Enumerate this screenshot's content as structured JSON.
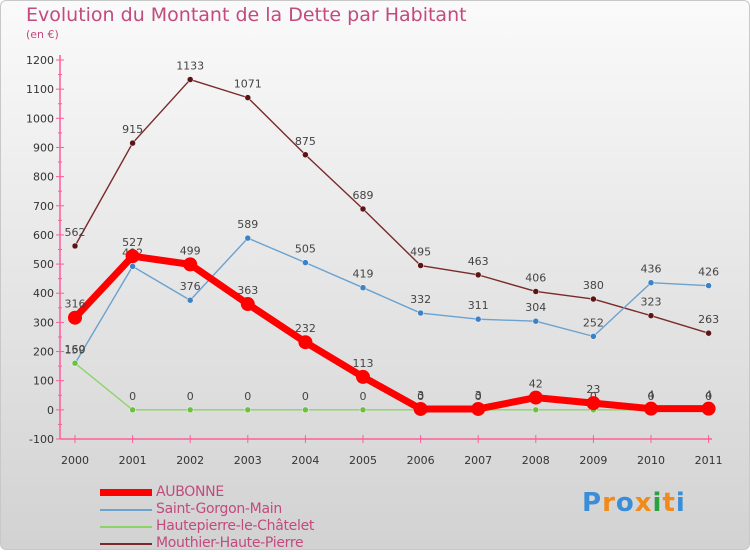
{
  "chart_data": {
    "type": "line",
    "title": "Evolution du Montant de la Dette par Habitant",
    "subtitle": "(en €)",
    "xlabel": "",
    "ylabel": "",
    "ylim": [
      -100,
      1200
    ],
    "yticks": [
      -100,
      0,
      100,
      200,
      300,
      400,
      500,
      600,
      700,
      800,
      900,
      1000,
      1100,
      1200
    ],
    "categories": [
      "2000",
      "2001",
      "2002",
      "2003",
      "2004",
      "2005",
      "2006",
      "2007",
      "2008",
      "2009",
      "2010",
      "2011"
    ],
    "grid": false,
    "legend_position": "bottom-left",
    "series": [
      {
        "name": "Mouthier-Haute-Pierre",
        "color": "#7a2a2a",
        "dot": "#5a1616",
        "thick": false,
        "values": [
          562,
          915,
          1133,
          1071,
          875,
          689,
          495,
          463,
          406,
          380,
          323,
          263
        ]
      },
      {
        "name": "Saint-Gorgon-Main",
        "color": "#6aa2d0",
        "dot": "#3d82c4",
        "thick": false,
        "values": [
          159,
          492,
          376,
          589,
          505,
          419,
          332,
          311,
          304,
          252,
          436,
          426
        ]
      },
      {
        "name": "Hautepierre-le-Châtelet",
        "color": "#8cd468",
        "dot": "#6cc040",
        "thick": false,
        "values": [
          160,
          0,
          0,
          0,
          0,
          0,
          0,
          0,
          0,
          0,
          0,
          0
        ]
      },
      {
        "name": "AUBONNE",
        "color": "#ff0000",
        "dot": "#ff0000",
        "thick": true,
        "values": [
          316,
          527,
          499,
          363,
          232,
          113,
          3,
          3,
          42,
          23,
          4,
          4
        ]
      }
    ],
    "legend_order": [
      "AUBONNE",
      "Saint-Gorgon-Main",
      "Hautepierre-le-Châtelet",
      "Mouthier-Haute-Pierre"
    ]
  },
  "logo": {
    "text": "Proxiti",
    "colors": [
      "#3a8ed8",
      "#f08a1a",
      "#3a8ed8",
      "#f08a1a",
      "#2aa040",
      "#f08a1a",
      "#3a8ed8"
    ]
  }
}
